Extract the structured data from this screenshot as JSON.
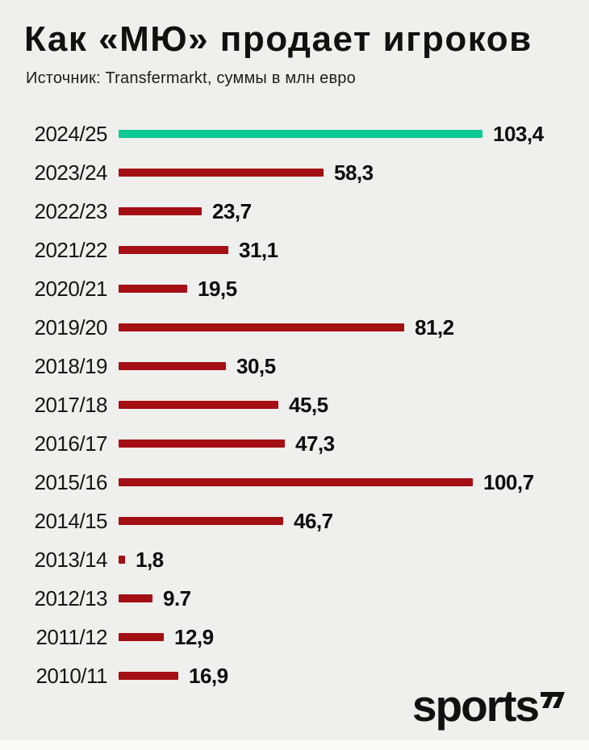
{
  "title": "Как «МЮ» продает игроков",
  "subtitle": "Источник: Transfermarkt, суммы в млн евро",
  "logo": {
    "text": "sports",
    "mark_icon": "arrow-up-right-double-stroke"
  },
  "colors": {
    "background": "#EFEFED",
    "highlight_bar": "#0BC894",
    "bar": "#A40F14",
    "text": "#141414"
  },
  "chart_data": {
    "type": "bar",
    "orientation": "horizontal",
    "title": "Как «МЮ» продает игроков",
    "source": "Источник: Transfermarkt, суммы в млн евро",
    "units": "млн евро",
    "categories": [
      "2024/25",
      "2023/24",
      "2022/23",
      "2021/22",
      "2020/21",
      "2019/20",
      "2018/19",
      "2017/18",
      "2016/17",
      "2015/16",
      "2014/15",
      "2013/14",
      "2012/13",
      "2011/12",
      "2010/11"
    ],
    "values": [
      103.4,
      58.3,
      23.7,
      31.1,
      19.5,
      81.2,
      30.5,
      45.5,
      47.3,
      100.7,
      46.7,
      1.8,
      9.7,
      12.9,
      16.9
    ],
    "value_labels": [
      "103,4",
      "58,3",
      "23,7",
      "31,1",
      "19,5",
      "81,2",
      "30,5",
      "45,5",
      "47,3",
      "100,7",
      "46,7",
      "1,8",
      "9.7",
      "12,9",
      "16,9"
    ],
    "highlight_index": 0,
    "xlim": [
      0,
      110
    ],
    "grid": false,
    "legend": false
  }
}
